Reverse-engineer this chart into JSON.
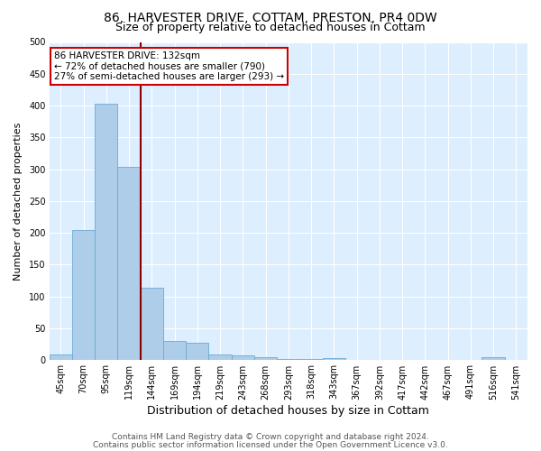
{
  "title1": "86, HARVESTER DRIVE, COTTAM, PRESTON, PR4 0DW",
  "title2": "Size of property relative to detached houses in Cottam",
  "xlabel": "Distribution of detached houses by size in Cottam",
  "ylabel": "Number of detached properties",
  "categories": [
    "45sqm",
    "70sqm",
    "95sqm",
    "119sqm",
    "144sqm",
    "169sqm",
    "194sqm",
    "219sqm",
    "243sqm",
    "268sqm",
    "293sqm",
    "318sqm",
    "343sqm",
    "367sqm",
    "392sqm",
    "417sqm",
    "442sqm",
    "467sqm",
    "491sqm",
    "516sqm",
    "541sqm"
  ],
  "values": [
    8,
    204,
    403,
    303,
    113,
    30,
    27,
    9,
    7,
    4,
    2,
    1,
    3,
    0,
    0,
    0,
    0,
    0,
    0,
    4,
    0
  ],
  "bar_color": "#aecde8",
  "bar_edgecolor": "#6aaad4",
  "vline_color": "#8b0000",
  "annotation_text": "86 HARVESTER DRIVE: 132sqm\n← 72% of detached houses are smaller (790)\n27% of semi-detached houses are larger (293) →",
  "annotation_box_color": "#ffffff",
  "annotation_box_edgecolor": "#cc0000",
  "ylim": [
    0,
    500
  ],
  "yticks": [
    0,
    50,
    100,
    150,
    200,
    250,
    300,
    350,
    400,
    450,
    500
  ],
  "footer1": "Contains HM Land Registry data © Crown copyright and database right 2024.",
  "footer2": "Contains public sector information licensed under the Open Government Licence v3.0.",
  "fig_bg_color": "#ffffff",
  "plot_bg_color": "#ddeeff",
  "title1_fontsize": 10,
  "title2_fontsize": 9,
  "xlabel_fontsize": 9,
  "ylabel_fontsize": 8,
  "tick_fontsize": 7,
  "footer_fontsize": 6.5,
  "annotation_fontsize": 7.5
}
